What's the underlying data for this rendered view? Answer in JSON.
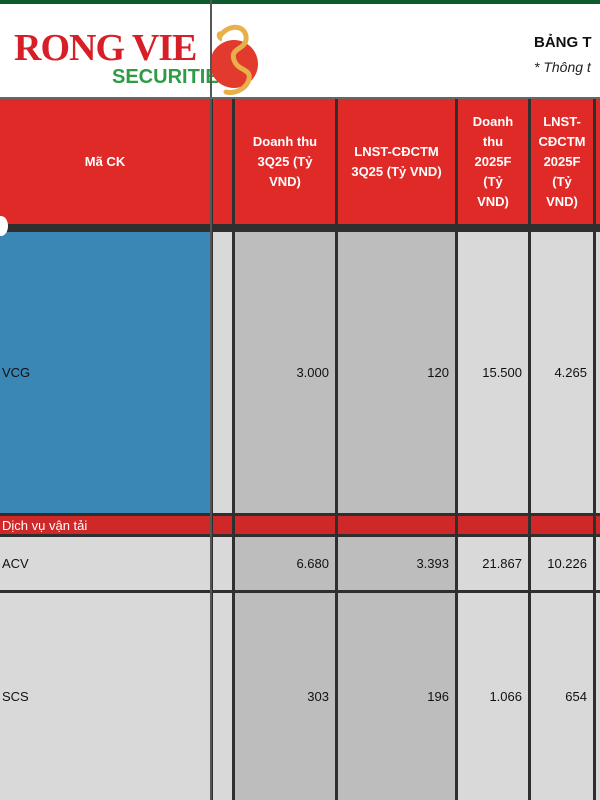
{
  "logo": {
    "main": "RONG VIE",
    "sub": "SECURITIE"
  },
  "report": {
    "title": "BẢNG T",
    "note": "* Thông t"
  },
  "table": {
    "headers": [
      "Mã CK",
      "Doanh thu 3Q25 (Tỷ VND)",
      "LNST-CĐCTM 3Q25 (Tỷ VND)",
      "Doanh thu 2025F (Tỷ VND)",
      "LNST-CĐCTM 2025F (Tỷ VND)"
    ],
    "header_lines": [
      [
        "Doanh thu",
        "3Q25 (Tỷ",
        "VND)"
      ],
      [
        "LNST-CĐCTM",
        "3Q25 (Tỷ VND)"
      ],
      [
        "Doanh",
        "thu",
        "2025F",
        "(Tỷ",
        "VND)"
      ],
      [
        "LNST-",
        "CĐCTM",
        "2025F",
        "(Tỷ",
        "VND)"
      ]
    ],
    "rows": [
      {
        "code": "VCG",
        "rev_3q25": "3.000",
        "np_3q25": "120",
        "rev_2025f": "15.500",
        "np_2025f": "4.265"
      },
      {
        "section": "Dịch vụ vận tải"
      },
      {
        "code": "ACV",
        "rev_3q25": "6.680",
        "np_3q25": "3.393",
        "rev_2025f": "21.867",
        "np_2025f": "10.226"
      },
      {
        "code": "SCS",
        "rev_3q25": "303",
        "np_3q25": "196",
        "rev_2025f": "1.066",
        "np_2025f": "654"
      }
    ]
  },
  "colors": {
    "header_red": "#e02a27",
    "section_red": "#cf2828",
    "highlight_blue": "#3a86b4",
    "logo_green": "#2e9b45"
  }
}
